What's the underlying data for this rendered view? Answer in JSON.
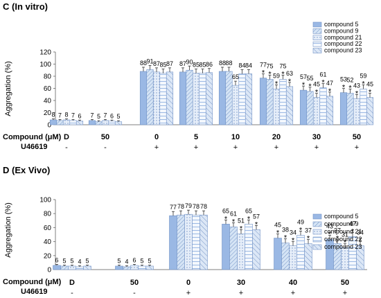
{
  "colors": {
    "compound 5": "#9ab8e4",
    "compound 9": "#d5e4f5",
    "compound 21": "#e6eef9",
    "compound 22": "#f4f8fd",
    "compound 23": "#dce7f6",
    "edge": "#7393c6"
  },
  "chart_data": [
    {
      "type": "bar",
      "title": "C (In vitro)",
      "ylabel": "Aggregation (%)",
      "ylim": [
        0,
        120
      ],
      "yticks": [
        0,
        20,
        40,
        60,
        80,
        100,
        120
      ],
      "legend_position": "top-right",
      "series_names": [
        "compound 5",
        "compound 9",
        "compound 21",
        "compound 22",
        "compound 23"
      ],
      "row_labels": {
        "compound": "Compound (μM)",
        "agonist": "U46619"
      },
      "groups": [
        {
          "compound": "D",
          "agonist": "-",
          "values": [
            8,
            7,
            8,
            7,
            6
          ],
          "sig": [
            false,
            false,
            false,
            false,
            false
          ],
          "labels": [
            "8",
            "7",
            "8",
            "7",
            "6"
          ]
        },
        {
          "compound": "50",
          "agonist": "-",
          "values": [
            7,
            5,
            7,
            6,
            5
          ],
          "sig": [
            false,
            false,
            false,
            false,
            false
          ],
          "labels": [
            "7",
            "5",
            "7",
            "6",
            "5"
          ]
        },
        {
          "compound": "0",
          "agonist": "+",
          "values": [
            88,
            91,
            87,
            85,
            87
          ],
          "sig": [
            false,
            false,
            false,
            false,
            false
          ],
          "labels": [
            "88",
            "91",
            "87",
            "85",
            "87"
          ]
        },
        {
          "compound": "5",
          "agonist": "+",
          "values": [
            87,
            90,
            85,
            85,
            86
          ],
          "sig": [
            false,
            false,
            false,
            false,
            false
          ],
          "labels": [
            "87",
            "90",
            "85",
            "85",
            "86"
          ]
        },
        {
          "compound": "10",
          "agonist": "+",
          "values": [
            88,
            88,
            65,
            84,
            84
          ],
          "sig": [
            false,
            false,
            false,
            false,
            false
          ],
          "labels": [
            "88",
            "88",
            "65",
            "84",
            "84"
          ]
        },
        {
          "compound": "20",
          "agonist": "+",
          "values": [
            77,
            75,
            59,
            75,
            63
          ],
          "sig": [
            true,
            true,
            true,
            true,
            true
          ],
          "labels": [
            "77",
            "75",
            "59",
            "75",
            "63"
          ]
        },
        {
          "compound": "30",
          "agonist": "+",
          "values": [
            57,
            55,
            45,
            61,
            47
          ],
          "sig": [
            true,
            true,
            true,
            true,
            true
          ],
          "labels": [
            "57",
            "55",
            "45",
            "61",
            "47"
          ]
        },
        {
          "compound": "50",
          "agonist": "+",
          "values": [
            53,
            52,
            43,
            59,
            45
          ],
          "sig": [
            true,
            true,
            true,
            true,
            true
          ],
          "labels": [
            "53",
            "52",
            "43",
            "59",
            "45"
          ]
        }
      ]
    },
    {
      "type": "bar",
      "title": "D (Ex Vivo)",
      "ylabel": "Aggregation (%)",
      "ylim": [
        0,
        100
      ],
      "yticks": [
        0,
        20,
        40,
        60,
        80,
        100
      ],
      "legend_position": "right",
      "series_names": [
        "compound 5",
        "compound 9",
        "compound 21",
        "compound 22",
        "compound 23"
      ],
      "row_labels": {
        "compound": "Compound (μM)",
        "agonist": "U46619"
      },
      "groups": [
        {
          "compound": "D",
          "agonist": "-",
          "values": [
            6,
            5,
            5,
            4,
            5
          ],
          "sig": [
            false,
            false,
            false,
            false,
            false
          ],
          "labels": [
            "6",
            "5",
            "5",
            "4",
            "5"
          ]
        },
        {
          "compound": "50",
          "agonist": "-",
          "values": [
            5,
            4,
            6,
            5,
            5
          ],
          "sig": [
            false,
            false,
            false,
            false,
            false
          ],
          "labels": [
            "5",
            "4",
            "6",
            "5",
            "5"
          ]
        },
        {
          "compound": "0",
          "agonist": "+",
          "values": [
            77,
            78,
            79,
            78,
            78
          ],
          "sig": [
            false,
            false,
            false,
            false,
            false
          ],
          "labels": [
            "77",
            "78",
            "79",
            "78",
            "78"
          ]
        },
        {
          "compound": "30",
          "agonist": "+",
          "values": [
            65,
            61,
            51,
            65,
            57
          ],
          "sig": [
            true,
            true,
            true,
            true,
            true
          ],
          "labels": [
            "65",
            "61",
            "51",
            "65",
            "57"
          ]
        },
        {
          "compound": "40",
          "agonist": "+",
          "values": [
            45,
            38,
            34,
            49,
            37
          ],
          "sig": [
            true,
            true,
            true,
            true,
            true
          ],
          "labels": [
            "45",
            "38",
            "34",
            "49",
            "37"
          ]
        },
        {
          "compound": "50",
          "agonist": "+",
          "values": [
            43,
            37,
            31,
            47,
            34
          ],
          "sig": [
            true,
            true,
            true,
            true,
            true
          ],
          "labels": [
            "43",
            "37",
            "31",
            "47",
            "34"
          ]
        }
      ]
    }
  ]
}
